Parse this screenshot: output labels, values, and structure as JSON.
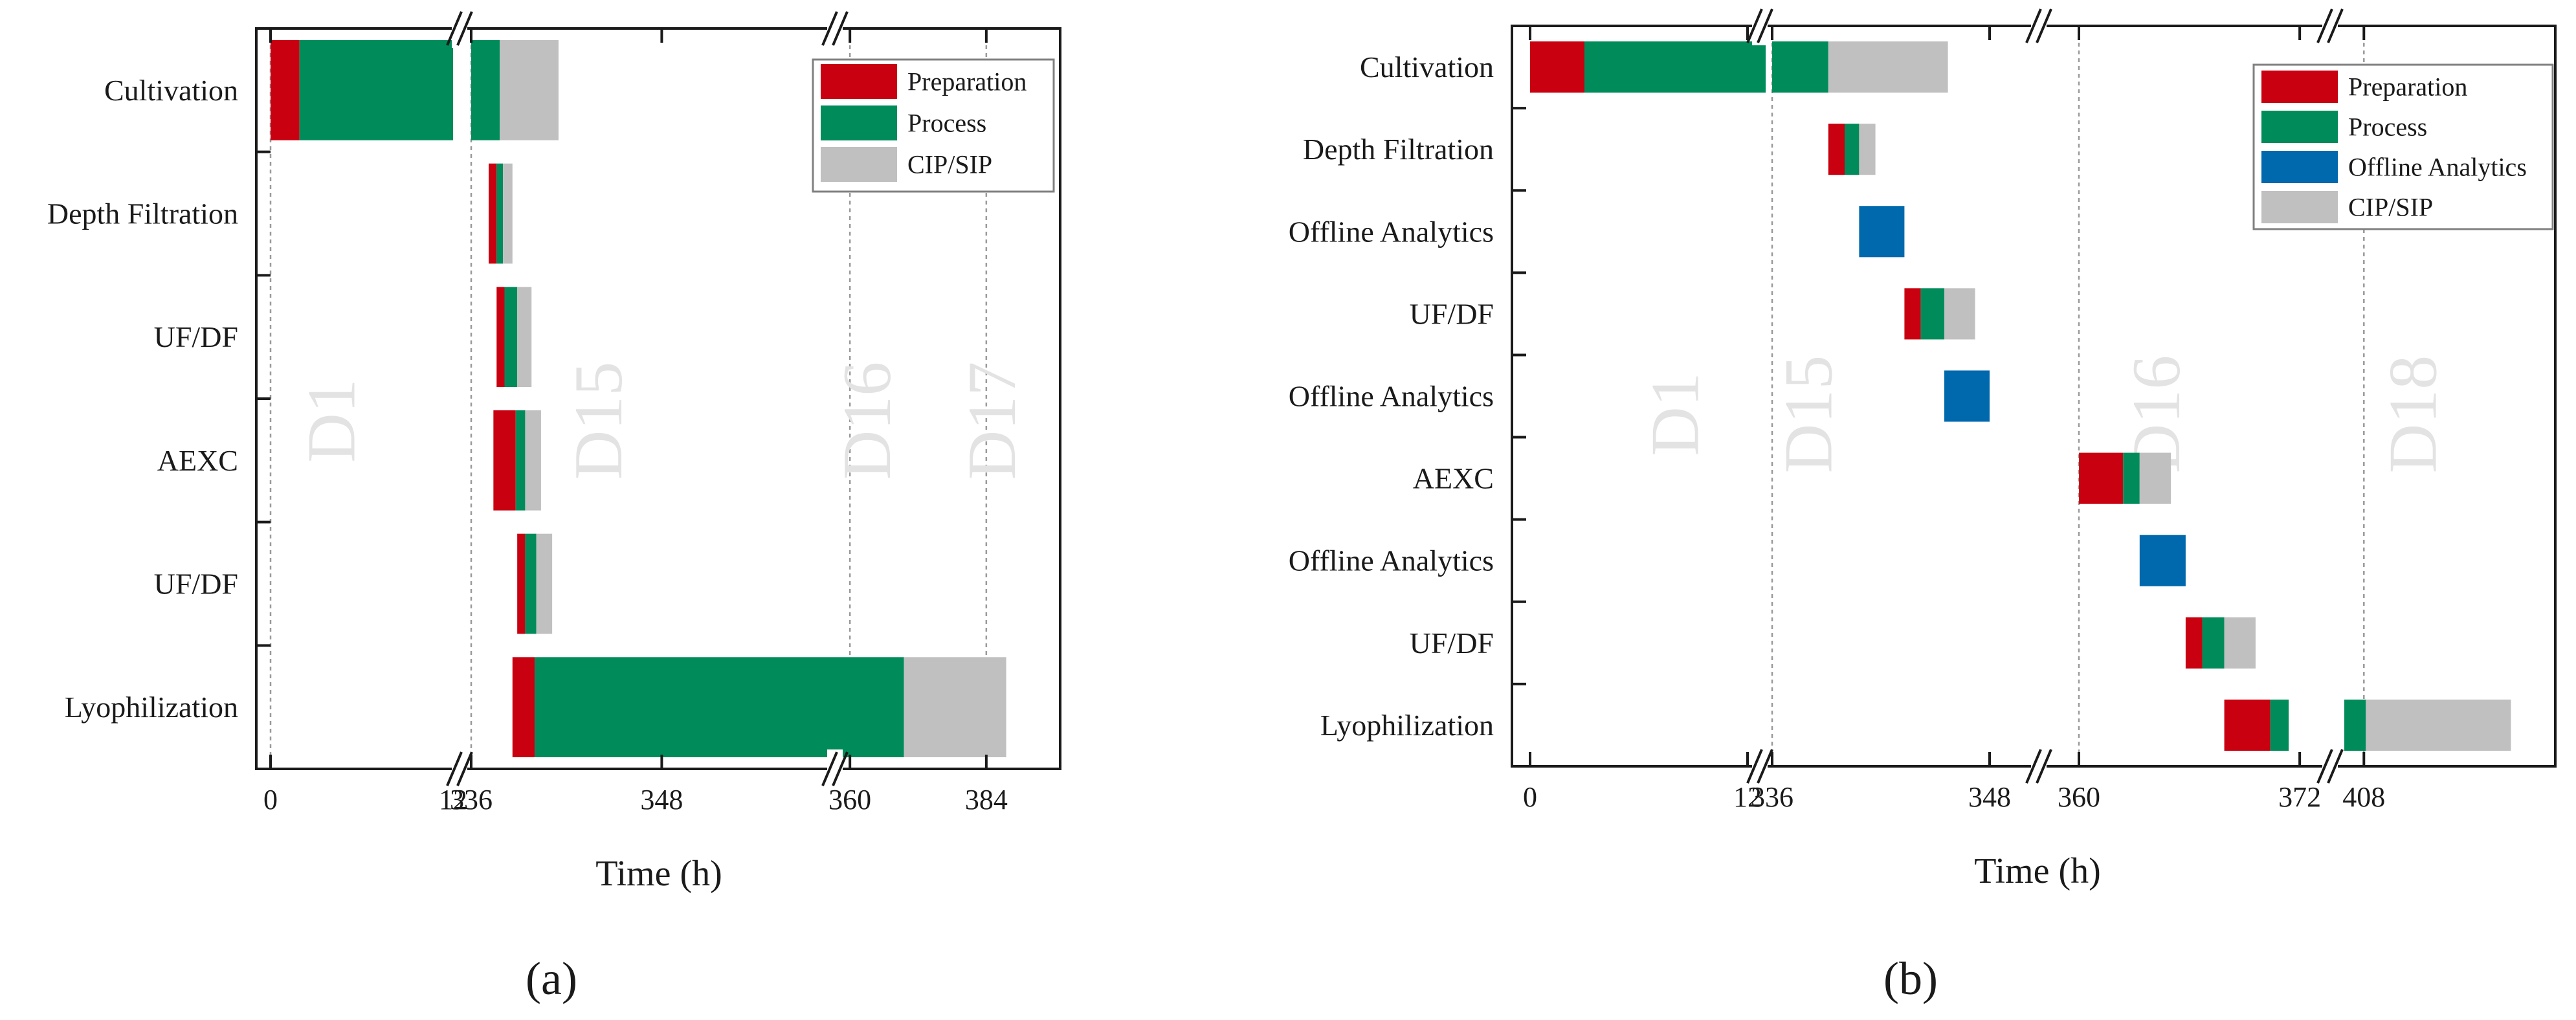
{
  "colors": {
    "preparation": "#c8000f",
    "process": "#008c5a",
    "cip": "#c0c0c0",
    "analytics": "#0068ad",
    "day_label": "#e3e3e3",
    "grid": "#9a9a9a"
  },
  "chart_data": [
    {
      "type": "gantt",
      "panel_label": "(a)",
      "xlabel": "Time (h)",
      "ylabel": "",
      "legend_position": "top-right",
      "legend": [
        {
          "label": "Preparation",
          "color_key": "preparation"
        },
        {
          "label": "Process",
          "color_key": "process"
        },
        {
          "label": "CIP/SIP",
          "color_key": "cip"
        }
      ],
      "categories": [
        "Cultivation",
        "Depth Filtration",
        "UF/DF",
        "AEXC",
        "UF/DF",
        "Lyophilization"
      ],
      "x_segments": [
        {
          "range": [
            0,
            12
          ],
          "ticks": [
            "0",
            "12"
          ]
        },
        {
          "range": [
            336,
            358.5
          ],
          "ticks": [
            "336",
            "348"
          ]
        },
        {
          "range": [
            358.5,
            397
          ],
          "ticks": [
            "360",
            "384"
          ]
        }
      ],
      "grid_values": [
        0,
        336,
        360,
        384
      ],
      "day_labels": [
        {
          "text": "D1",
          "x_value": 4
        },
        {
          "text": "D15",
          "x_value": 344
        },
        {
          "text": "D16",
          "x_value": 363
        },
        {
          "text": "D17",
          "x_value": 385
        }
      ],
      "tasks": [
        {
          "row": 0,
          "phase": "preparation",
          "start": 0,
          "end": 1.9
        },
        {
          "row": 0,
          "phase": "process",
          "start": 1.9,
          "end": 12
        },
        {
          "row": 0,
          "phase": "process",
          "start": 336,
          "end": 337.8
        },
        {
          "row": 0,
          "phase": "cip",
          "start": 337.8,
          "end": 341.5
        },
        {
          "row": 1,
          "phase": "preparation",
          "start": 337.1,
          "end": 337.6
        },
        {
          "row": 1,
          "phase": "process",
          "start": 337.6,
          "end": 338
        },
        {
          "row": 1,
          "phase": "cip",
          "start": 338,
          "end": 338.6
        },
        {
          "row": 2,
          "phase": "preparation",
          "start": 337.6,
          "end": 338.1
        },
        {
          "row": 2,
          "phase": "process",
          "start": 338.1,
          "end": 338.9
        },
        {
          "row": 2,
          "phase": "cip",
          "start": 338.9,
          "end": 339.8
        },
        {
          "row": 3,
          "phase": "preparation",
          "start": 337.4,
          "end": 338.8
        },
        {
          "row": 3,
          "phase": "process",
          "start": 338.8,
          "end": 339.4
        },
        {
          "row": 3,
          "phase": "cip",
          "start": 339.4,
          "end": 340.4
        },
        {
          "row": 4,
          "phase": "preparation",
          "start": 338.9,
          "end": 339.4
        },
        {
          "row": 4,
          "phase": "process",
          "start": 339.4,
          "end": 340.1
        },
        {
          "row": 4,
          "phase": "cip",
          "start": 340.1,
          "end": 341.1
        },
        {
          "row": 5,
          "phase": "preparation",
          "start": 338.6,
          "end": 340
        },
        {
          "row": 5,
          "phase": "process",
          "start": 340,
          "end": 358.5
        },
        {
          "row": 5,
          "phase": "process",
          "start": 358.5,
          "end": 369.5
        },
        {
          "row": 5,
          "phase": "cip",
          "start": 369.5,
          "end": 387.5
        }
      ]
    },
    {
      "type": "gantt",
      "panel_label": "(b)",
      "xlabel": "Time (h)",
      "ylabel": "",
      "legend_position": "top-right",
      "legend": [
        {
          "label": "Preparation",
          "color_key": "preparation"
        },
        {
          "label": "Process",
          "color_key": "process"
        },
        {
          "label": "Offline Analytics",
          "color_key": "analytics"
        },
        {
          "label": "CIP/SIP",
          "color_key": "cip"
        }
      ],
      "categories": [
        "Cultivation",
        "Depth Filtration",
        "Offline Analytics",
        "UF/DF",
        "Offline Analytics",
        "AEXC",
        "Offline Analytics",
        "UF/DF",
        "Lyophilization"
      ],
      "x_segments": [
        {
          "range": [
            0,
            12
          ],
          "ticks": [
            "0",
            "12"
          ]
        },
        {
          "range": [
            336,
            350
          ],
          "ticks": [
            "336",
            "348"
          ]
        },
        {
          "range": [
            360,
            374
          ],
          "ticks": [
            "360",
            "372"
          ]
        },
        {
          "range": [
            407,
            417.5
          ],
          "ticks": [
            "408"
          ]
        }
      ],
      "grid_values": [
        336,
        360,
        408
      ],
      "day_labels": [
        {
          "text": "D1",
          "x_value": 8
        },
        {
          "text": "D15",
          "x_value": 338
        },
        {
          "text": "D16",
          "x_value": 364.2
        },
        {
          "text": "D18",
          "x_value": 410.5
        }
      ],
      "tasks": [
        {
          "row": 0,
          "phase": "preparation",
          "start": 0,
          "end": 3
        },
        {
          "row": 0,
          "phase": "process",
          "start": 3,
          "end": 13
        },
        {
          "row": 0,
          "phase": "process",
          "start": 336,
          "end": 339.1
        },
        {
          "row": 0,
          "phase": "cip",
          "start": 339.1,
          "end": 345.7
        },
        {
          "row": 1,
          "phase": "preparation",
          "start": 339.1,
          "end": 340
        },
        {
          "row": 1,
          "phase": "process",
          "start": 340,
          "end": 340.8
        },
        {
          "row": 1,
          "phase": "cip",
          "start": 340.8,
          "end": 341.7
        },
        {
          "row": 2,
          "phase": "analytics",
          "start": 340.8,
          "end": 343.3
        },
        {
          "row": 3,
          "phase": "preparation",
          "start": 343.3,
          "end": 344.2
        },
        {
          "row": 3,
          "phase": "process",
          "start": 344.2,
          "end": 345.5
        },
        {
          "row": 3,
          "phase": "cip",
          "start": 345.5,
          "end": 347.2
        },
        {
          "row": 4,
          "phase": "analytics",
          "start": 345.5,
          "end": 348
        },
        {
          "row": 5,
          "phase": "preparation",
          "start": 360,
          "end": 362.4
        },
        {
          "row": 5,
          "phase": "process",
          "start": 362.4,
          "end": 363.3
        },
        {
          "row": 5,
          "phase": "cip",
          "start": 363.3,
          "end": 365
        },
        {
          "row": 6,
          "phase": "analytics",
          "start": 363.3,
          "end": 365.8
        },
        {
          "row": 7,
          "phase": "preparation",
          "start": 365.8,
          "end": 366.7
        },
        {
          "row": 7,
          "phase": "process",
          "start": 366.7,
          "end": 367.9
        },
        {
          "row": 7,
          "phase": "cip",
          "start": 367.9,
          "end": 369.6
        },
        {
          "row": 8,
          "phase": "preparation",
          "start": 367.9,
          "end": 370.4
        },
        {
          "row": 8,
          "phase": "process",
          "start": 370.4,
          "end": 371.4
        },
        {
          "row": 8,
          "phase": "process",
          "start": 407,
          "end": 408.1
        },
        {
          "row": 8,
          "phase": "cip",
          "start": 408.1,
          "end": 415.5
        }
      ]
    }
  ]
}
